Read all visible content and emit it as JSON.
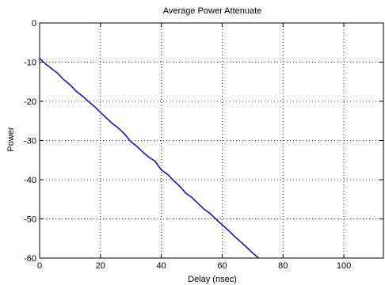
{
  "chart_data": {
    "type": "line",
    "title": "Average Power Attenuate",
    "xlabel": "Delay (nsec)",
    "ylabel": "Power",
    "xlim": [
      0,
      113
    ],
    "ylim": [
      -60,
      0
    ],
    "xticks": [
      0,
      20,
      40,
      60,
      80,
      100
    ],
    "yticks": [
      0,
      -10,
      -20,
      -30,
      -40,
      -50,
      -60
    ],
    "grid": "dotted",
    "line_color": "#1414d2",
    "series": [
      {
        "x": [
          0,
          2,
          4,
          6,
          8,
          10,
          12,
          14,
          16,
          18,
          20,
          22,
          24,
          26,
          28,
          30,
          32,
          34,
          36,
          38,
          40,
          42,
          44,
          46,
          48,
          50,
          52,
          54,
          56,
          58,
          60,
          62,
          64,
          66,
          68,
          70,
          72,
          73
        ],
        "values": [
          -9.0,
          -10.5,
          -11.7,
          -12.9,
          -14.5,
          -15.8,
          -17.4,
          -18.6,
          -20.0,
          -21.3,
          -22.8,
          -24.3,
          -25.7,
          -26.9,
          -28.4,
          -30.3,
          -31.5,
          -33.0,
          -34.3,
          -35.3,
          -37.5,
          -38.6,
          -40.2,
          -41.6,
          -43.4,
          -44.5,
          -46.0,
          -47.5,
          -48.6,
          -50.1,
          -51.5,
          -52.9,
          -54.4,
          -55.8,
          -57.2,
          -58.7,
          -60.0,
          -60.5
        ]
      }
    ]
  }
}
